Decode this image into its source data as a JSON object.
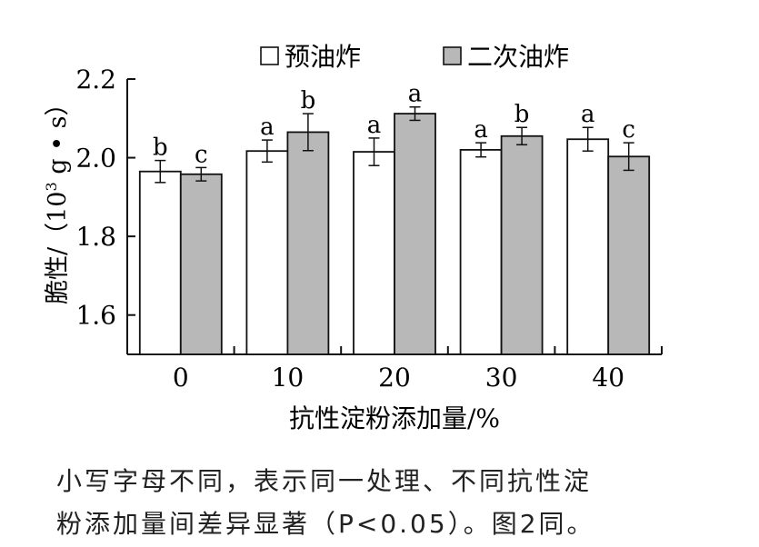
{
  "chart_data": {
    "type": "bar",
    "xlabel": "抗性淀粉添加量/%",
    "ylabel_main": "脆性/（10",
    "ylabel_sup": "3",
    "ylabel_tail": " g • s）",
    "categories": [
      "0",
      "10",
      "20",
      "30",
      "40"
    ],
    "ylim": [
      1.5,
      2.2
    ],
    "yticks": [
      1.6,
      1.8,
      2.0,
      2.2
    ],
    "ytick_labels": [
      "1.6",
      "1.8",
      "2.0",
      "2.2"
    ],
    "series": [
      {
        "name": "预油炸",
        "color": "#ffffff",
        "values": [
          1.965,
          2.017,
          2.015,
          2.02,
          2.047
        ],
        "errors": [
          0.028,
          0.028,
          0.035,
          0.018,
          0.03
        ],
        "labels": [
          "b",
          "a",
          "a",
          "a",
          "a"
        ]
      },
      {
        "name": "二次油炸",
        "color": "#b8b8b8",
        "values": [
          1.958,
          2.065,
          2.112,
          2.055,
          2.003
        ],
        "errors": [
          0.017,
          0.047,
          0.017,
          0.022,
          0.035
        ],
        "labels": [
          "c",
          "b",
          "a",
          "b",
          "c"
        ]
      }
    ],
    "legend_position": "top",
    "grid": false
  },
  "caption": {
    "line1": "小写字母不同，表示同一处理、不同抗性淀",
    "line2": "粉添加量间差异显著（P<0.05）。图2同。"
  }
}
